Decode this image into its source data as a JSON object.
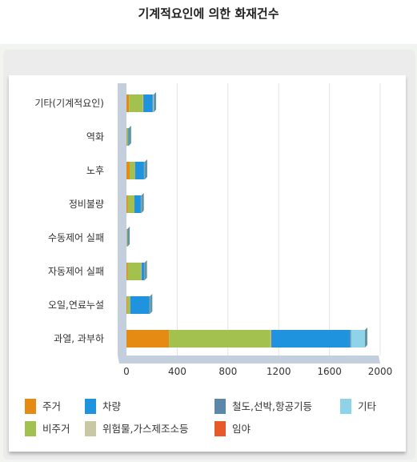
{
  "title": "기계적요인에 의한 화재건수",
  "chart_data": {
    "type": "bar",
    "orientation": "horizontal",
    "stacked": true,
    "categories": [
      "기타(기계적요인)",
      "역화",
      "노후",
      "정비불량",
      "수동제어 실패",
      "자동제어 실패",
      "오일,연료누설",
      "과열, 과부하"
    ],
    "xlim": [
      0,
      2000
    ],
    "xticks": [
      "0",
      "400",
      "800",
      "1200",
      "1600",
      "2000"
    ],
    "series": [
      {
        "name": "주거",
        "color": "#e58a13",
        "values": [
          20,
          2,
          25,
          10,
          1,
          10,
          8,
          335
        ]
      },
      {
        "name": "비주거",
        "color": "#a3c14e",
        "values": [
          110,
          8,
          40,
          50,
          3,
          105,
          20,
          800
        ]
      },
      {
        "name": "위험물,가스제조소등",
        "color": "#c8c9a4",
        "values": [
          3,
          1,
          2,
          2,
          2,
          3,
          2,
          5
        ]
      },
      {
        "name": "임야",
        "color": "#e8592a",
        "values": [
          1,
          0,
          1,
          1,
          0,
          1,
          0,
          2
        ]
      },
      {
        "name": "차량",
        "color": "#1f93dd",
        "values": [
          70,
          5,
          70,
          50,
          0,
          20,
          150,
          620
        ]
      },
      {
        "name": "철도,선박,항공기등",
        "color": "#5b87a8",
        "values": [
          6,
          1,
          4,
          3,
          0,
          2,
          2,
          8
        ]
      },
      {
        "name": "기타",
        "color": "#8fd3e8",
        "values": [
          5,
          1,
          3,
          2,
          1,
          2,
          3,
          110
        ]
      }
    ],
    "legend": [
      {
        "name": "주거",
        "color": "#e58a13"
      },
      {
        "name": "차량",
        "color": "#1f93dd"
      },
      {
        "name": "철도,선박,항공기등",
        "color": "#5b87a8"
      },
      {
        "name": "기타",
        "color": "#8fd3e8"
      },
      {
        "name": "비주거",
        "color": "#a3c14e"
      },
      {
        "name": "위험물,가스제조소등",
        "color": "#c8c9a4"
      },
      {
        "name": "임야",
        "color": "#e8592a"
      }
    ],
    "grid": true,
    "legend_position": "bottom"
  }
}
